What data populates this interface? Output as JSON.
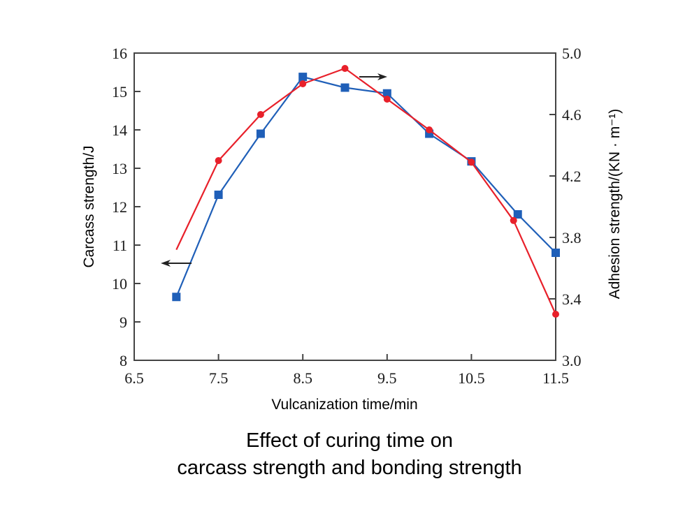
{
  "chart_data": {
    "type": "line",
    "title": "Effect of curing time on carcass strength and bonding strength",
    "title_lines": [
      "Effect of curing time on",
      "carcass strength and bonding strength"
    ],
    "xlabel": "Vulcanization time/min",
    "ylabel_left": "Carcass strength/J",
    "ylabel_right": "Adhesion strength/(KN · m⁻¹)",
    "xlim": [
      6.5,
      11.5
    ],
    "ylim_left": [
      8,
      16
    ],
    "ylim_right": [
      3.0,
      5.0
    ],
    "x_ticks": [
      "6.5",
      "7.5",
      "8.5",
      "9.5",
      "10.5",
      "11.5"
    ],
    "y_left_ticks": [
      "8",
      "9",
      "10",
      "11",
      "12",
      "13",
      "14",
      "15",
      "16"
    ],
    "y_right_ticks": [
      "3.0",
      "3.4",
      "3.8",
      "4.2",
      "4.6",
      "5.0"
    ],
    "grid": false,
    "series": [
      {
        "name": "Carcass strength",
        "axis": "left",
        "color": "#1f5fb8",
        "marker": "square",
        "x": [
          7.0,
          7.5,
          8.0,
          8.5,
          9.0,
          9.5,
          10.0,
          10.5,
          11.05,
          11.5
        ],
        "values": [
          9.65,
          12.31,
          13.9,
          15.38,
          15.1,
          14.95,
          13.9,
          13.18,
          11.8,
          10.8
        ],
        "indicator_arrow": "left"
      },
      {
        "name": "Adhesion strength",
        "axis": "right",
        "color": "#e8202a",
        "marker": "circle",
        "x": [
          7.0,
          7.5,
          8.0,
          8.5,
          9.0,
          9.5,
          10.0,
          10.5,
          11.0,
          11.5
        ],
        "values": [
          3.72,
          4.3,
          4.6,
          4.8,
          4.9,
          4.7,
          4.5,
          4.29,
          3.91,
          3.3
        ],
        "first_point_marker": false,
        "indicator_arrow": "right"
      }
    ],
    "axis_color": "#444444"
  }
}
